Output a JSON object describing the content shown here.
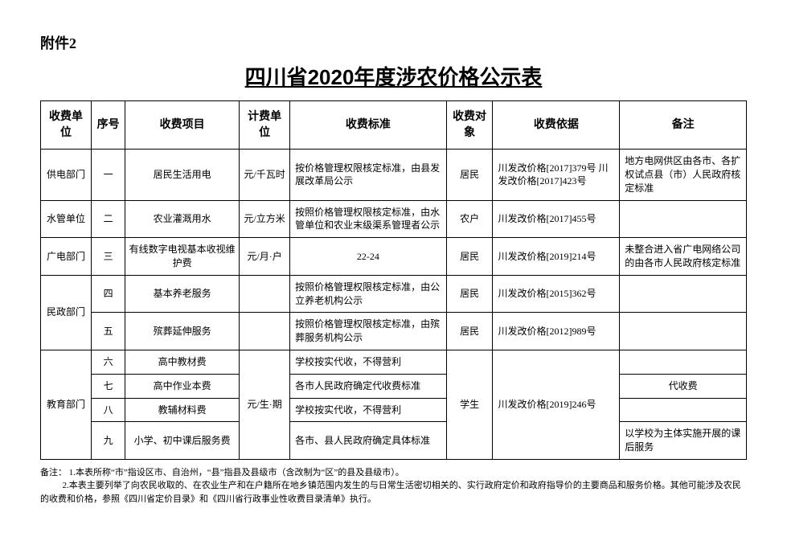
{
  "attachment_label": "附件2",
  "title": "四川省2020年度涉农价格公示表",
  "headers": {
    "unit": "收费单位",
    "seq": "序号",
    "item": "收费项目",
    "measure": "计费单位",
    "standard": "收费标准",
    "object": "收费对象",
    "basis": "收费依据",
    "note": "备注"
  },
  "rows": {
    "r1": {
      "unit": "供电部门",
      "seq": "一",
      "item": "居民生活用电",
      "measure": "元/千瓦时",
      "standard": "按价格管理权限核定标准，由县发展改革局公示",
      "object": "居民",
      "basis": "川发改价格[2017]379号 川发改价格[2017]423号",
      "note": "地方电网供区由各市、各扩权试点县（市）人民政府核定标准"
    },
    "r2": {
      "unit": "水管单位",
      "seq": "二",
      "item": "农业灌溉用水",
      "measure": "元/立方米",
      "standard": "按照价格管理权限核定标准，由水管单位和农业末级渠系管理者公示",
      "object": "农户",
      "basis": "川发改价格[2017]455号",
      "note": ""
    },
    "r3": {
      "unit": "广电部门",
      "seq": "三",
      "item": "有线数字电视基本收视维护费",
      "measure": "元/月·户",
      "standard": "22-24",
      "object": "居民",
      "basis": "川发改价格[2019]214号",
      "note": "未整合进入省广电网络公司的由各市人民政府核定标准"
    },
    "r4": {
      "unit": "民政部门",
      "seq": "四",
      "item": "基本养老服务",
      "measure": "",
      "standard": "按照价格管理权限核定标准，由公立养老机构公示",
      "object": "居民",
      "basis": "川发改价格[2015]362号",
      "note": ""
    },
    "r5": {
      "seq": "五",
      "item": "殡葬延伸服务",
      "standard": "按照价格管理权限核定标准，由殡葬服务机构公示",
      "object": "居民",
      "basis": "川发改价格[2012]989号",
      "note": ""
    },
    "r6": {
      "unit": "教育部门",
      "seq": "六",
      "item": "高中教材费",
      "measure": "元/生·期",
      "standard": "学校按实代收，不得营利",
      "object": "学生",
      "basis": "川发改价格[2019]246号",
      "note": ""
    },
    "r7": {
      "seq": "七",
      "item": "高中作业本费",
      "standard": "各市人民政府确定代收费标准",
      "note": "代收费"
    },
    "r8": {
      "seq": "八",
      "item": "教辅材料费",
      "standard": "学校按实代收，不得营利",
      "note": ""
    },
    "r9": {
      "seq": "九",
      "item": "小学、初中课后服务费",
      "standard": "各市、县人民政府确定具体标准",
      "note": "以学校为主体实施开展的课后服务"
    }
  },
  "footnote": {
    "label": "备注：",
    "line1": "1.本表所称“市”指设区市、自治州，“县”指县及县级市（含改制为“区”的县及县级市）。",
    "line2": "2.本表主要列举了向农民收取的、在农业生产和在户籍所在地乡镇范围内发生的与日常生活密切相关的、实行政府定价和政府指导价的主要商品和服务价格。其他可能涉及农民的收费和价格，参照《四川省定价目录》和《四川省行政事业性收费目录清单》执行。"
  }
}
